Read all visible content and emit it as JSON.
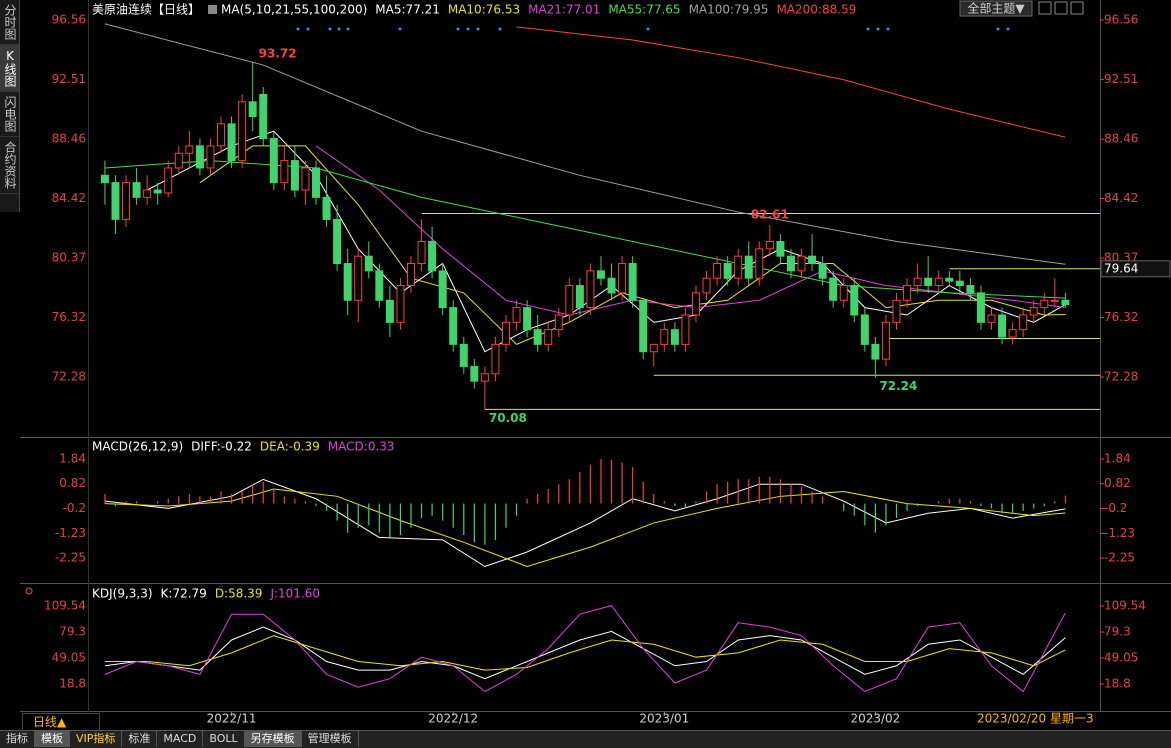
{
  "header": {
    "sidebar": [
      "分时图",
      "K线图",
      "闪电图",
      "合约资料"
    ],
    "theme_button": "全部主题▼"
  },
  "chart_data": [
    {
      "type": "candlestick",
      "title": "美原油连续【日线】",
      "indicator": "MA(5,10,21,55,100,200)",
      "xlim": [
        -0.94,
        94.28
      ],
      "ylim": [
        68.2,
        97.38
      ],
      "yticks": [
        96.56,
        92.51,
        88.46,
        84.42,
        80.37,
        76.32,
        72.28
      ],
      "up_color": "#ff3c3c",
      "down_color": "#3fd46c",
      "candles": [
        [
          86,
          87,
          84,
          85.5
        ],
        [
          85.5,
          86,
          82,
          83
        ],
        [
          83,
          86,
          82.5,
          85.5
        ],
        [
          85.5,
          86.5,
          84,
          84.5
        ],
        [
          84.5,
          86,
          84,
          85
        ],
        [
          85,
          85.5,
          84,
          84.8
        ],
        [
          84.8,
          87,
          84.5,
          86.5
        ],
        [
          86.5,
          88,
          86,
          87.5
        ],
        [
          87.5,
          89,
          86.5,
          88
        ],
        [
          88,
          88.5,
          86,
          86.5
        ],
        [
          86.5,
          88.5,
          86,
          88
        ],
        [
          88,
          90,
          87.5,
          89.5
        ],
        [
          89.5,
          90,
          86.5,
          87
        ],
        [
          87,
          91.5,
          86.5,
          91
        ],
        [
          91,
          93.72,
          89,
          90
        ],
        [
          91.5,
          92,
          88,
          88.5
        ],
        [
          88.5,
          89,
          85,
          85.5
        ],
        [
          85.5,
          88,
          85,
          87
        ],
        [
          87,
          88,
          84.5,
          85
        ],
        [
          85,
          87,
          84,
          86.5
        ],
        [
          86.5,
          87,
          84,
          84.5
        ],
        [
          84.5,
          86,
          82.5,
          83
        ],
        [
          83,
          84,
          79.5,
          80
        ],
        [
          80,
          81,
          76.5,
          77.5
        ],
        [
          77.5,
          81,
          76,
          80.5
        ],
        [
          80.5,
          81.5,
          79,
          79.5
        ],
        [
          79.5,
          80,
          77,
          77.5
        ],
        [
          77.5,
          78.5,
          75,
          76
        ],
        [
          76,
          79,
          75.5,
          78.5
        ],
        [
          78.5,
          80.5,
          78,
          80
        ],
        [
          80,
          83,
          79.5,
          81.5
        ],
        [
          81.5,
          82.5,
          79,
          79.5
        ],
        [
          79.5,
          80,
          76.5,
          77
        ],
        [
          77,
          77.5,
          74,
          74.5
        ],
        [
          74.5,
          75,
          72.5,
          73
        ],
        [
          73,
          73.5,
          71.5,
          72
        ],
        [
          72,
          73,
          70.08,
          72.5
        ],
        [
          72.5,
          75,
          72,
          74.5
        ],
        [
          74.5,
          76.5,
          74,
          76
        ],
        [
          76,
          77.5,
          75.5,
          77
        ],
        [
          77,
          77.5,
          75,
          75.5
        ],
        [
          75.5,
          76.5,
          74,
          74.5
        ],
        [
          74.5,
          76,
          74,
          75.5
        ],
        [
          75.5,
          77,
          75,
          76.5
        ],
        [
          76.5,
          79,
          76,
          78.5
        ],
        [
          78.5,
          79,
          76.5,
          77
        ],
        [
          77,
          80,
          76.5,
          79.5
        ],
        [
          79.5,
          80.5,
          78.5,
          79
        ],
        [
          79,
          80,
          77.5,
          78
        ],
        [
          78,
          80.5,
          77.5,
          80
        ],
        [
          80,
          80.5,
          77,
          77.5
        ],
        [
          77.5,
          77.5,
          73.5,
          74
        ],
        [
          74,
          74.5,
          73,
          74.5
        ],
        [
          74.5,
          76,
          74,
          75.5
        ],
        [
          75.5,
          76,
          74,
          74.5
        ],
        [
          74.5,
          77,
          74,
          76.5
        ],
        [
          76.5,
          78.5,
          76,
          78
        ],
        [
          78,
          79.5,
          77.5,
          79
        ],
        [
          79,
          80.5,
          78.5,
          80
        ],
        [
          80,
          80.5,
          78.5,
          79
        ],
        [
          79,
          81,
          78.5,
          80.5
        ],
        [
          80.5,
          81.5,
          78.5,
          79
        ],
        [
          79,
          81.5,
          78.5,
          81
        ],
        [
          81,
          82.61,
          80.5,
          81.5
        ],
        [
          81.5,
          82,
          80,
          80.5
        ],
        [
          80.5,
          81,
          79,
          79.5
        ],
        [
          79.5,
          81,
          79,
          80.5
        ],
        [
          80.5,
          82,
          79.5,
          80
        ],
        [
          80,
          80.5,
          78.5,
          79
        ],
        [
          79,
          79.5,
          77,
          77.5
        ],
        [
          77.5,
          79,
          77,
          78.5
        ],
        [
          78.5,
          79,
          76,
          76.5
        ],
        [
          76.5,
          77,
          74,
          74.5
        ],
        [
          74.5,
          75,
          72.24,
          73.5
        ],
        [
          73.5,
          76.5,
          73,
          76
        ],
        [
          76,
          78,
          75.5,
          77.5
        ],
        [
          77.5,
          79,
          77,
          78.5
        ],
        [
          78.5,
          80,
          78,
          79
        ],
        [
          79,
          80.5,
          78,
          78.5
        ],
        [
          78.5,
          79.5,
          78,
          79
        ],
        [
          79,
          79.5,
          78.5,
          78.8
        ],
        [
          78.8,
          79.5,
          78,
          78.5
        ],
        [
          78.5,
          79,
          77.5,
          78
        ],
        [
          78,
          78.5,
          75.5,
          76
        ],
        [
          76,
          77,
          75.5,
          76.5
        ],
        [
          76.5,
          77,
          74.5,
          75
        ],
        [
          75,
          76,
          74.5,
          75.5
        ],
        [
          75.5,
          77,
          75,
          76.5
        ],
        [
          76.5,
          77.5,
          76,
          77
        ],
        [
          77,
          78,
          76.5,
          77.5
        ],
        [
          77.5,
          79,
          77,
          77.5
        ],
        [
          77.5,
          78,
          77,
          77.21
        ]
      ],
      "series": [
        {
          "name": "MA5:77.21",
          "color": "#ffffff",
          "x": [
            4,
            8,
            12,
            16,
            20,
            24,
            28,
            32,
            36,
            40,
            44,
            48,
            52,
            56,
            60,
            64,
            68,
            72,
            76,
            80,
            84,
            88,
            91
          ],
          "values": [
            85,
            86.5,
            88,
            89,
            86,
            81,
            78,
            80,
            74,
            75.5,
            76.5,
            78.5,
            76,
            76.5,
            79.5,
            81,
            80,
            77,
            76.5,
            78.5,
            77,
            76,
            77.21
          ]
        },
        {
          "name": "MA10:76.53",
          "color": "#e8e800",
          "x": [
            9,
            14,
            19,
            24,
            29,
            34,
            39,
            44,
            49,
            54,
            59,
            64,
            69,
            74,
            79,
            84,
            89,
            91
          ],
          "values": [
            85.5,
            88,
            88,
            84,
            79,
            78,
            74.5,
            76,
            78,
            77,
            77.5,
            80,
            80,
            77,
            77.5,
            77.5,
            76.5,
            76.53
          ]
        },
        {
          "name": "MA21:77.01",
          "color": "#e040e0",
          "x": [
            20,
            26,
            32,
            38,
            44,
            50,
            56,
            62,
            68,
            74,
            80,
            86,
            91
          ],
          "values": [
            88,
            85,
            81,
            77.5,
            76.5,
            77.5,
            77,
            77.5,
            79.5,
            78.5,
            78,
            77.5,
            77.01
          ]
        },
        {
          "name": "MA55:77.65",
          "color": "#40e040",
          "x": [
            0,
            10,
            20,
            30,
            40,
            50,
            60,
            70,
            80,
            91
          ],
          "values": [
            86.5,
            87,
            86.5,
            84.5,
            83,
            81.5,
            80,
            78.5,
            78,
            77.65
          ]
        },
        {
          "name": "MA100:79.95",
          "color": "#a0a0a0",
          "x": [
            0,
            15,
            30,
            45,
            60,
            75,
            91
          ],
          "values": [
            96.3,
            93.5,
            89,
            86,
            83.5,
            81.5,
            79.95
          ]
        },
        {
          "name": "MA200:88.59",
          "color": "#ff4040",
          "x": [
            39,
            50,
            60,
            70,
            80,
            91
          ],
          "values": [
            96.1,
            95.2,
            94,
            92.5,
            90.5,
            88.59
          ]
        }
      ],
      "levels": [
        {
          "value": 83.4,
          "start": 30
        },
        {
          "value": 79.64,
          "start": 80
        },
        {
          "value": 74.9,
          "start": 74
        },
        {
          "value": 72.4,
          "start": 52
        },
        {
          "value": 70.08,
          "start": 36
        }
      ],
      "level_color": "#c8e860",
      "annotations": [
        {
          "index": 14,
          "value": 93.72,
          "color": "#ff4040",
          "position": "right"
        },
        {
          "index": 63,
          "value": 82.61,
          "color": "#ff4040",
          "position": "above"
        },
        {
          "index": 36,
          "value": 70.08,
          "color": "#3fd46c",
          "position": "below"
        },
        {
          "index": 73,
          "value": 72.24,
          "color": "#3fd46c",
          "position": "below"
        }
      ],
      "price_label": 79.64
    },
    {
      "type": "macd",
      "title": "MACD(26,12,9)",
      "xlim": [
        -0.94,
        94.28
      ],
      "ylim": [
        -3.24,
        2.42
      ],
      "yticks": [
        1.84,
        0.82,
        -0.2,
        -1.23,
        -2.25
      ],
      "up_color": "#ff3c3c",
      "down_color": "#3fd46c",
      "series": [
        {
          "name": "DIFF:-0.22",
          "color": "#ffffff",
          "x": [
            0,
            6,
            12,
            15,
            20,
            26,
            32,
            36,
            40,
            46,
            50,
            54,
            58,
            62,
            66,
            70,
            74,
            78,
            82,
            86,
            91
          ],
          "values": [
            0.1,
            -0.2,
            0.3,
            1,
            0.2,
            -1.4,
            -1.5,
            -2.6,
            -2,
            -0.8,
            0.2,
            -0.3,
            0.2,
            0.8,
            0.8,
            0.1,
            -0.8,
            -0.4,
            -0.2,
            -0.6,
            -0.22
          ]
        },
        {
          "name": "DEA:-0.39",
          "color": "#e8e800",
          "x": [
            0,
            6,
            12,
            16,
            22,
            28,
            34,
            40,
            46,
            52,
            58,
            64,
            70,
            76,
            82,
            88,
            91
          ],
          "values": [
            0,
            -0.1,
            0.1,
            0.6,
            0.3,
            -0.7,
            -1.6,
            -2.6,
            -1.8,
            -0.8,
            -0.2,
            0.3,
            0.5,
            0,
            -0.2,
            -0.5,
            -0.39
          ]
        },
        {
          "name": "MACD:0.33",
          "color": "#e040e0",
          "histogram": true,
          "values": [
            0.4,
            -0.1,
            0.1,
            0.1,
            0,
            0.1,
            0.2,
            0.3,
            0.4,
            0.3,
            0.3,
            0.5,
            0.4,
            0.5,
            0.8,
            0.9,
            0.6,
            0.3,
            0.2,
            0.1,
            -0.1,
            -0.3,
            -0.7,
            -1.2,
            -1,
            -0.9,
            -1.2,
            -1.4,
            -1.3,
            -1,
            -0.6,
            -0.5,
            -0.7,
            -1,
            -1.3,
            -1.6,
            -1.7,
            -1.5,
            -1,
            -0.5,
            0.2,
            0.4,
            0.6,
            0.8,
            1,
            1.3,
            1.6,
            1.84,
            1.8,
            1.7,
            1.5,
            0.9,
            0.4,
            0.1,
            -0.1,
            -0.2,
            0.1,
            0.5,
            0.8,
            0.9,
            1,
            1,
            1.1,
            1.1,
            1,
            0.8,
            0.7,
            0.5,
            0.3,
            0,
            -0.3,
            -0.5,
            -0.9,
            -1.2,
            -0.9,
            -0.6,
            -0.3,
            -0.1,
            0,
            0.1,
            0.2,
            0.2,
            0.1,
            -0.1,
            -0.2,
            -0.4,
            -0.4,
            -0.3,
            -0.2,
            -0.1,
            0.1,
            0.33
          ]
        }
      ]
    },
    {
      "type": "kdj",
      "title": "KDJ(9,3,3)",
      "xlim": [
        -0.94,
        94.28
      ],
      "ylim": [
        -13.77,
        128.15
      ],
      "yticks": [
        109.54,
        79.3,
        49.05,
        18.8
      ],
      "series": [
        {
          "name": "K:72.79",
          "color": "#ffffff",
          "x": [
            0,
            3,
            6,
            9,
            12,
            15,
            18,
            21,
            24,
            27,
            30,
            33,
            36,
            39,
            42,
            45,
            48,
            51,
            54,
            57,
            60,
            63,
            66,
            69,
            72,
            75,
            78,
            81,
            84,
            87,
            91
          ],
          "values": [
            40,
            45,
            40,
            35,
            70,
            85,
            70,
            45,
            35,
            35,
            45,
            40,
            25,
            40,
            55,
            70,
            80,
            60,
            40,
            45,
            70,
            75,
            70,
            50,
            30,
            40,
            65,
            70,
            50,
            30,
            72.79
          ]
        },
        {
          "name": "D:58.39",
          "color": "#e8e800",
          "x": [
            0,
            4,
            8,
            12,
            16,
            20,
            24,
            28,
            32,
            36,
            40,
            44,
            48,
            52,
            56,
            60,
            64,
            68,
            72,
            76,
            80,
            84,
            88,
            91
          ],
          "values": [
            45,
            45,
            40,
            55,
            75,
            60,
            45,
            40,
            45,
            35,
            38,
            55,
            70,
            65,
            50,
            55,
            70,
            65,
            45,
            45,
            60,
            55,
            40,
            58.39
          ]
        },
        {
          "name": "J:101.60",
          "color": "#e040e0",
          "x": [
            0,
            3,
            6,
            9,
            12,
            15,
            18,
            21,
            24,
            27,
            30,
            33,
            36,
            39,
            42,
            45,
            48,
            51,
            54,
            57,
            60,
            63,
            66,
            69,
            72,
            75,
            78,
            81,
            84,
            87,
            91
          ],
          "values": [
            30,
            45,
            40,
            30,
            100,
            100,
            70,
            30,
            15,
            25,
            50,
            40,
            10,
            30,
            60,
            100,
            110,
            60,
            20,
            35,
            90,
            85,
            75,
            40,
            10,
            25,
            85,
            90,
            40,
            10,
            101.6
          ]
        }
      ]
    }
  ],
  "x_axis": {
    "xticks": [
      {
        "value": 12,
        "label": "2022/11"
      },
      {
        "value": 33,
        "label": "2022/12"
      },
      {
        "value": 53,
        "label": "2023/01"
      },
      {
        "value": 73,
        "label": "2023/02"
      }
    ],
    "current": "2023/02/20 星期一",
    "extra": "3"
  },
  "footer": {
    "period": "日线▲",
    "tabs": [
      "指标",
      "模板",
      "VIP指标",
      "标准",
      "MACD",
      "BOLL",
      "另存模板",
      "管理模板"
    ]
  }
}
